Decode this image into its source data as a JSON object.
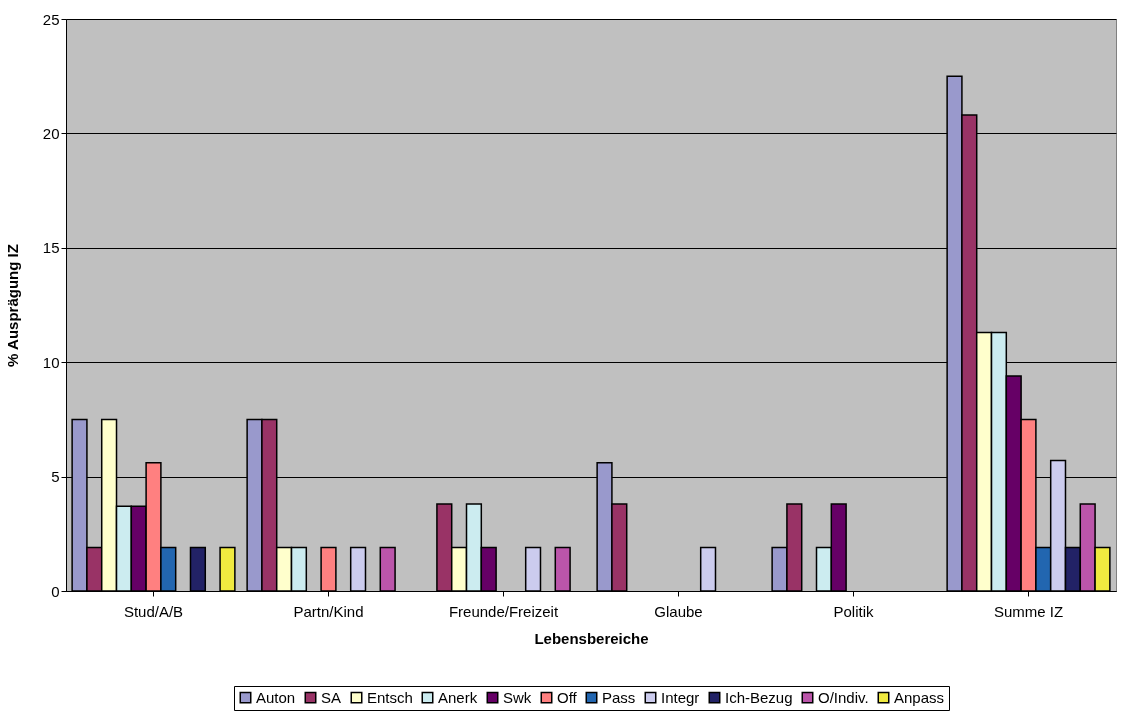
{
  "chart_data": {
    "type": "bar",
    "xlabel": "Lebensbereiche",
    "ylabel": "% Ausprägung IZ",
    "categories": [
      "Stud/A/B",
      "Partn/Kind",
      "Freunde/Freizeit",
      "Glaube",
      "Politik",
      "Summe IZ"
    ],
    "series": [
      {
        "name": "Auton",
        "color": "#9999cc",
        "values": [
          7.5,
          7.5,
          null,
          5.6,
          1.9,
          22.5
        ]
      },
      {
        "name": "SA",
        "color": "#993366",
        "values": [
          1.9,
          7.5,
          3.8,
          3.8,
          3.8,
          20.8
        ]
      },
      {
        "name": "Entsch",
        "color": "#ffffcc",
        "values": [
          7.5,
          1.9,
          1.9,
          null,
          null,
          11.3
        ]
      },
      {
        "name": "Anerk",
        "color": "#ccecf0",
        "values": [
          3.7,
          1.9,
          3.8,
          null,
          1.9,
          11.3
        ]
      },
      {
        "name": "Swk",
        "color": "#660066",
        "values": [
          3.7,
          null,
          1.9,
          null,
          3.8,
          9.4
        ]
      },
      {
        "name": "Off",
        "color": "#ff8080",
        "values": [
          5.6,
          1.9,
          null,
          null,
          null,
          7.5
        ]
      },
      {
        "name": "Pass",
        "color": "#2266b0",
        "values": [
          1.9,
          null,
          null,
          null,
          null,
          1.9
        ]
      },
      {
        "name": "Integr",
        "color": "#ccccee",
        "values": [
          null,
          1.9,
          1.9,
          1.9,
          null,
          5.7
        ]
      },
      {
        "name": "Ich-Bezug",
        "color": "#222266",
        "values": [
          1.9,
          null,
          null,
          null,
          null,
          1.9
        ]
      },
      {
        "name": "O/Indiv.",
        "color": "#bb55aa",
        "values": [
          null,
          1.9,
          1.9,
          null,
          null,
          3.8
        ]
      },
      {
        "name": "Anpass",
        "color": "#f0ea40",
        "values": [
          1.9,
          null,
          null,
          null,
          null,
          1.9
        ]
      }
    ],
    "ylim": [
      0,
      25
    ],
    "yticks": [
      0,
      5,
      10,
      15,
      20,
      25
    ],
    "grid": "y",
    "legend": "bottom"
  }
}
